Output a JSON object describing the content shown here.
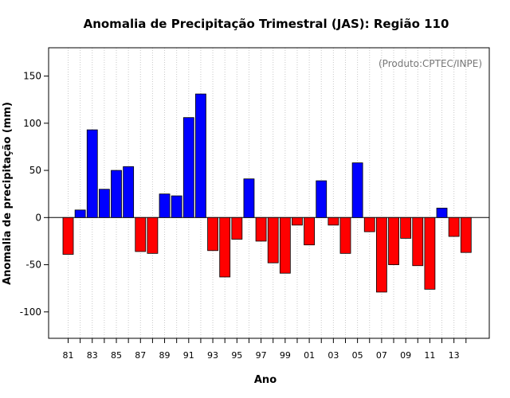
{
  "chart_data": {
    "type": "bar",
    "title": "Anomalia de Precipitação Trimestral (JAS): Região 110",
    "source_note": "(Produto:CPTEC/INPE)",
    "xlabel": "Ano",
    "ylabel": "Anomalia de precipitação (mm)",
    "ylim": [
      -128,
      180
    ],
    "yticks": [
      -100,
      -50,
      0,
      50,
      100,
      150
    ],
    "ytick_labels": [
      "-100",
      "-50",
      "0",
      "50",
      "100",
      "150"
    ],
    "categories": [
      "1981",
      "1982",
      "1983",
      "1984",
      "1985",
      "1986",
      "1987",
      "1988",
      "1989",
      "1990",
      "1991",
      "1992",
      "1993",
      "1994",
      "1995",
      "1996",
      "1997",
      "1998",
      "1999",
      "2000",
      "2001",
      "2002",
      "2003",
      "2004",
      "2005",
      "2006",
      "2007",
      "2008",
      "2009",
      "2010",
      "2011",
      "2012",
      "2013",
      "2014"
    ],
    "x_tick_labels": [
      "81",
      "",
      "83",
      "",
      "85",
      "",
      "87",
      "",
      "89",
      "",
      "91",
      "",
      "93",
      "",
      "95",
      "",
      "97",
      "",
      "99",
      "",
      "01",
      "",
      "03",
      "",
      "05",
      "",
      "07",
      "",
      "09",
      "",
      "11",
      "",
      "13",
      ""
    ],
    "values": [
      -39,
      8,
      93,
      30,
      50,
      54,
      -36,
      -38,
      25,
      23,
      106,
      131,
      -35,
      -63,
      -23,
      41,
      -25,
      -48,
      -59,
      -8,
      -29,
      39,
      -8,
      -38,
      58,
      -15,
      -79,
      -50,
      -22,
      -51,
      -76,
      10,
      -20,
      -37
    ],
    "colors": {
      "positive": "#0000ff",
      "negative": "#ff0000",
      "grid": "#c8c8c8",
      "zero_line": "#000000"
    },
    "grid": true
  }
}
